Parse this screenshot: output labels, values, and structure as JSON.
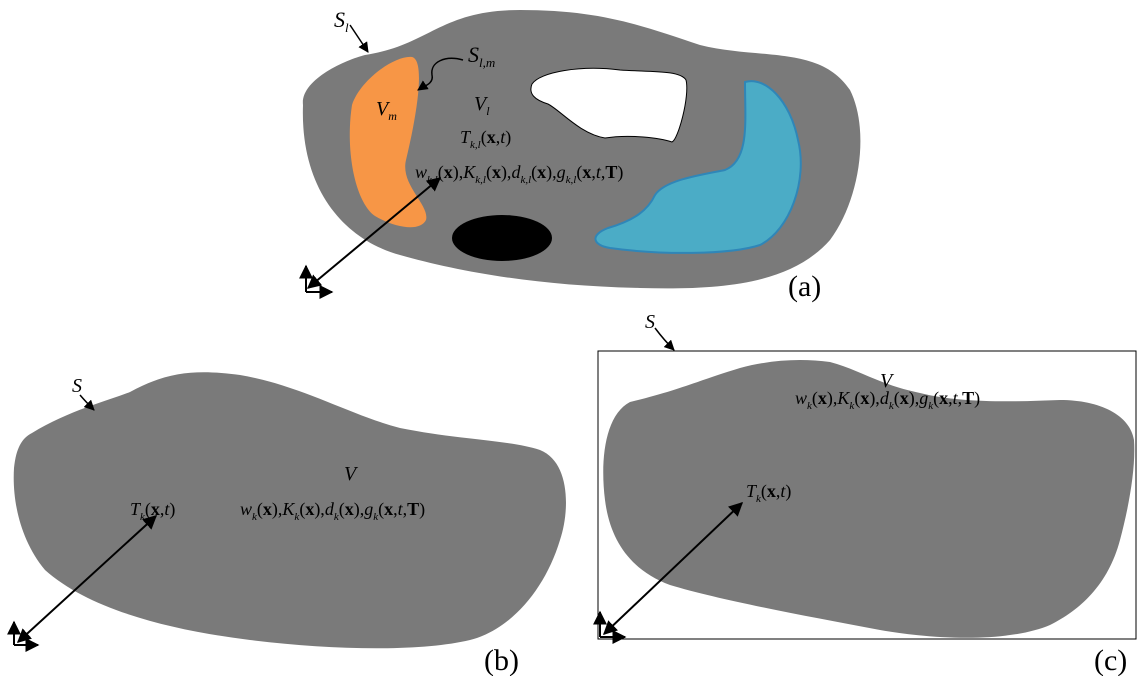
{
  "colors": {
    "background": "#ffffff",
    "body": "#7a7a7a",
    "orange_region": "#f79646",
    "blue_region": "#4bacc6",
    "blue_outline": "#2f86b8",
    "void": "#ffffff",
    "black_inclusion": "#000000",
    "ink": "#000000"
  },
  "panel_a": {
    "label": "(a)",
    "surface_label": {
      "base": "S",
      "sub": "l"
    },
    "interface_label": {
      "base": "S",
      "sub": "l,m"
    },
    "region_m_label": {
      "base": "V",
      "sub": "m"
    },
    "region_l_label": {
      "base": "V",
      "sub": "l"
    },
    "temperature": {
      "base": "T",
      "sub": "k,l",
      "args": "(x,t)"
    },
    "properties": "w_{k,l}(x), K_{k,l}(x), d_{k,l}(x), g_{k,l}(x,t,T)"
  },
  "panel_b": {
    "label": "(b)",
    "surface_label": "S",
    "volume_label": "V",
    "temperature": {
      "base": "T",
      "sub": "k",
      "args": "(x,t)"
    },
    "properties": "w_k(x), K_k(x), d_k(x), g_k(x,t,T)"
  },
  "panel_c": {
    "label": "(c)",
    "surface_label": "S",
    "volume_label": "V",
    "temperature": {
      "base": "T",
      "sub": "k",
      "args": "(x,t)"
    },
    "properties": "w_k(x), K_k(x), d_k(x), g_k(x,t,T)"
  }
}
